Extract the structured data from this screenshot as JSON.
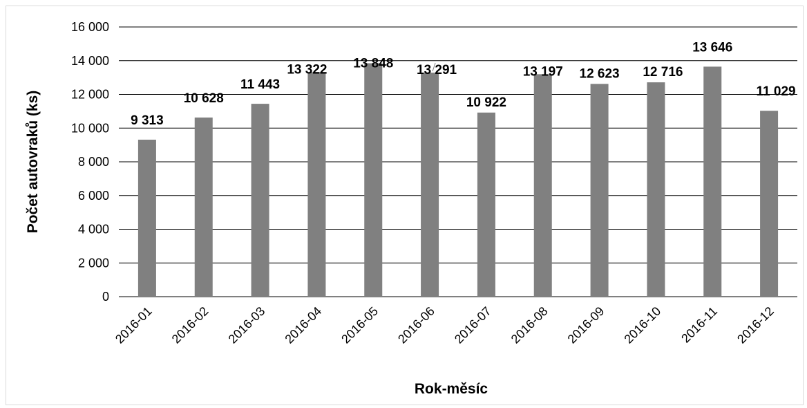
{
  "chart_data": {
    "type": "bar",
    "title": "",
    "xlabel": "Rok-měsíc",
    "ylabel": "Počet autovraků (ks)",
    "ylim": [
      0,
      16000
    ],
    "ytick_step": 2000,
    "ytick_labels": [
      "0",
      "2 000",
      "4 000",
      "6 000",
      "8 000",
      "10 000",
      "12 000",
      "14 000",
      "16 000"
    ],
    "categories": [
      "2016-01",
      "2016-02",
      "2016-03",
      "2016-04",
      "2016-05",
      "2016-06",
      "2016-07",
      "2016-08",
      "2016-09",
      "2016-10",
      "2016-11",
      "2016-12"
    ],
    "values": [
      9313,
      10628,
      11443,
      13322,
      13848,
      13291,
      10922,
      13197,
      12623,
      12716,
      13646,
      11029
    ],
    "data_labels": [
      "9 313",
      "10 628",
      "11 443",
      "13 322",
      "13 848",
      "13 291",
      "10 922",
      "13 197",
      "12 623",
      "12 716",
      "13 646",
      "11 029"
    ],
    "grid": true,
    "legend": "none",
    "bar_color": "#808080",
    "grid_color": "#000000"
  }
}
